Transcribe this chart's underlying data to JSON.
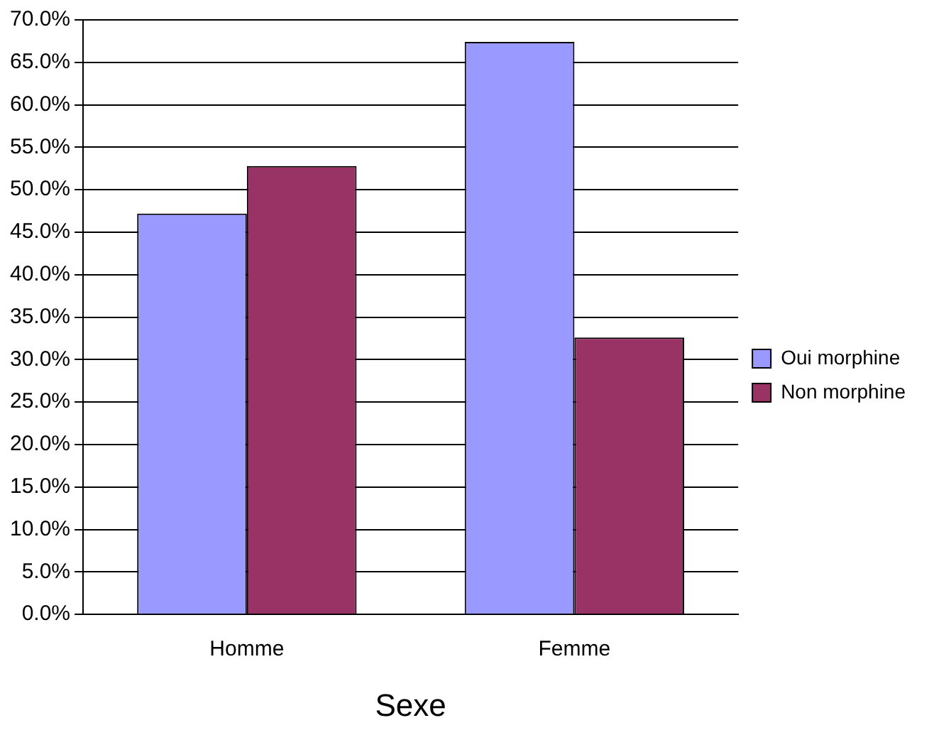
{
  "chart_data": {
    "type": "bar",
    "xlabel": "Sexe",
    "categories": [
      "Homme",
      "Femme"
    ],
    "series": [
      {
        "name": "Oui morphine",
        "color": "#9999ff",
        "values": [
          47.2,
          67.4
        ]
      },
      {
        "name": "Non morphine",
        "color": "#993366",
        "values": [
          52.8,
          32.6
        ]
      }
    ],
    "ylim": [
      0,
      70
    ],
    "yticks": [
      {
        "value": 0,
        "label": "0.0%"
      },
      {
        "value": 5,
        "label": "5.0%"
      },
      {
        "value": 10,
        "label": "10.0%"
      },
      {
        "value": 15,
        "label": "15.0%"
      },
      {
        "value": 20,
        "label": "20.0%"
      },
      {
        "value": 25,
        "label": "25.0%"
      },
      {
        "value": 30,
        "label": "30.0%"
      },
      {
        "value": 35,
        "label": "35.0%"
      },
      {
        "value": 40,
        "label": "40.0%"
      },
      {
        "value": 45,
        "label": "45.0%"
      },
      {
        "value": 50,
        "label": "50.0%"
      },
      {
        "value": 55,
        "label": "55.0%"
      },
      {
        "value": 60,
        "label": "60.0%"
      },
      {
        "value": 65,
        "label": "65.0%"
      },
      {
        "value": 70,
        "label": "70.0%"
      }
    ],
    "grid": "y",
    "legend": "right"
  }
}
